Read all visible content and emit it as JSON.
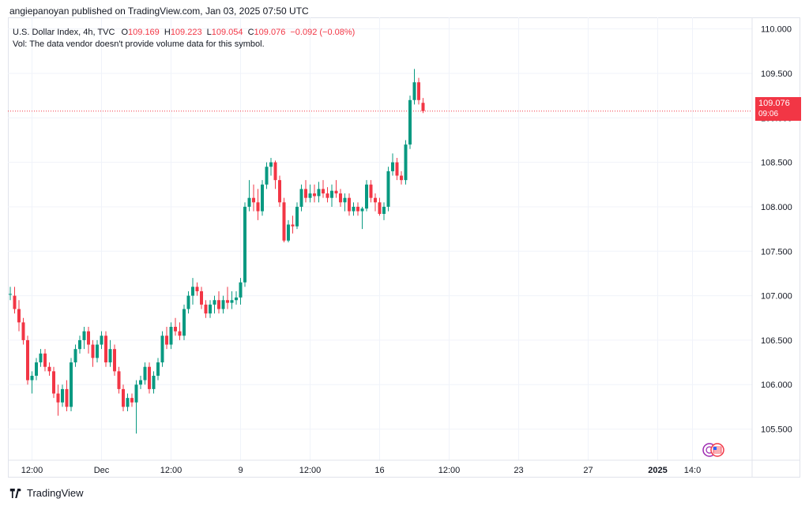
{
  "publisher_line": "angiepanoyan published on TradingView.com, Jan 03, 2025 07:50 UTC",
  "legend": {
    "symbol": "U.S. Dollar Index, 4h, TVC",
    "open_label": "O",
    "open": "109.169",
    "high_label": "H",
    "high": "109.223",
    "low_label": "L",
    "low": "109.054",
    "close_label": "C",
    "close": "109.076",
    "change": "−0.092 (−0.08%)",
    "vol_note": "Vol: The data vendor doesn't provide volume data for this symbol."
  },
  "last_price": {
    "price": "109.076",
    "countdown": "09:06"
  },
  "brand": "TradingView",
  "colors": {
    "up": "#089981",
    "down": "#f23645",
    "grid": "#f0f3fa",
    "axis_text": "#131722"
  },
  "chart_data": {
    "type": "candlestick",
    "title": "U.S. Dollar Index, 4h, TVC",
    "y_ticks": [
      "105.500",
      "106.000",
      "106.500",
      "107.000",
      "107.500",
      "108.000",
      "108.500",
      "109.000",
      "109.500",
      "110.000"
    ],
    "ylim": [
      105.15,
      110.13
    ],
    "x_ticks": [
      {
        "label": "12:00",
        "i": 5
      },
      {
        "label": "Dec",
        "i": 21
      },
      {
        "label": "12:00",
        "i": 37
      },
      {
        "label": "9",
        "i": 53
      },
      {
        "label": "12:00",
        "i": 69
      },
      {
        "label": "16",
        "i": 85
      },
      {
        "label": "12:00",
        "i": 101
      },
      {
        "label": "23",
        "i": 117
      },
      {
        "label": "27",
        "i": 133
      },
      {
        "label": "2025",
        "i": 149,
        "bold": true
      },
      {
        "label": "14:0",
        "i": 157
      }
    ],
    "last_price_line": 109.076,
    "candles": [
      [
        107.02,
        107.1,
        106.95,
        107.02
      ],
      [
        107.0,
        107.1,
        106.8,
        106.85
      ],
      [
        106.85,
        106.95,
        106.6,
        106.7
      ],
      [
        106.7,
        106.75,
        106.45,
        106.5
      ],
      [
        106.5,
        106.55,
        106.0,
        106.05
      ],
      [
        106.05,
        106.15,
        105.9,
        106.1
      ],
      [
        106.1,
        106.3,
        106.05,
        106.25
      ],
      [
        106.25,
        106.4,
        106.2,
        106.35
      ],
      [
        106.35,
        106.4,
        106.15,
        106.2
      ],
      [
        106.2,
        106.25,
        106.1,
        106.15
      ],
      [
        106.15,
        106.2,
        105.85,
        105.9
      ],
      [
        105.9,
        106.0,
        105.65,
        105.8
      ],
      [
        105.8,
        106.0,
        105.75,
        105.95
      ],
      [
        105.95,
        106.05,
        105.7,
        105.75
      ],
      [
        105.75,
        106.3,
        105.7,
        106.25
      ],
      [
        106.25,
        106.45,
        106.2,
        106.4
      ],
      [
        106.4,
        106.55,
        106.35,
        106.5
      ],
      [
        106.5,
        106.65,
        106.4,
        106.6
      ],
      [
        106.6,
        106.65,
        106.35,
        106.45
      ],
      [
        106.45,
        106.5,
        106.2,
        106.3
      ],
      [
        106.3,
        106.5,
        106.25,
        106.45
      ],
      [
        106.45,
        106.6,
        106.4,
        106.55
      ],
      [
        106.55,
        106.6,
        106.2,
        106.25
      ],
      [
        106.25,
        106.5,
        106.2,
        106.4
      ],
      [
        106.4,
        106.45,
        106.1,
        106.15
      ],
      [
        106.15,
        106.2,
        105.9,
        105.95
      ],
      [
        105.95,
        106.0,
        105.7,
        105.75
      ],
      [
        105.75,
        105.9,
        105.7,
        105.85
      ],
      [
        105.85,
        105.9,
        105.75,
        105.8
      ],
      [
        105.8,
        106.05,
        105.45,
        106.0
      ],
      [
        106.0,
        106.1,
        105.95,
        106.05
      ],
      [
        106.05,
        106.25,
        106.0,
        106.2
      ],
      [
        106.2,
        106.25,
        105.9,
        105.95
      ],
      [
        105.95,
        106.15,
        105.9,
        106.1
      ],
      [
        106.1,
        106.3,
        106.05,
        106.25
      ],
      [
        106.25,
        106.6,
        106.2,
        106.55
      ],
      [
        106.55,
        106.65,
        106.4,
        106.45
      ],
      [
        106.45,
        106.7,
        106.4,
        106.65
      ],
      [
        106.65,
        106.75,
        106.55,
        106.6
      ],
      [
        106.6,
        106.7,
        106.5,
        106.55
      ],
      [
        106.55,
        106.9,
        106.5,
        106.85
      ],
      [
        106.85,
        107.05,
        106.8,
        107.0
      ],
      [
        107.0,
        107.2,
        106.9,
        107.1
      ],
      [
        107.1,
        107.15,
        107.0,
        107.05
      ],
      [
        107.05,
        107.1,
        106.85,
        106.9
      ],
      [
        106.9,
        106.95,
        106.75,
        106.8
      ],
      [
        106.8,
        106.95,
        106.75,
        106.9
      ],
      [
        106.9,
        107.0,
        106.8,
        106.95
      ],
      [
        106.95,
        107.05,
        106.8,
        106.85
      ],
      [
        106.85,
        107.0,
        106.8,
        106.95
      ],
      [
        106.95,
        107.1,
        106.85,
        106.92
      ],
      [
        106.92,
        107.05,
        106.85,
        106.95
      ],
      [
        106.95,
        107.05,
        106.9,
        106.98
      ],
      [
        106.98,
        107.2,
        106.9,
        107.15
      ],
      [
        107.15,
        108.05,
        107.1,
        108.0
      ],
      [
        108.0,
        108.3,
        107.95,
        108.1
      ],
      [
        108.1,
        108.25,
        107.95,
        108.05
      ],
      [
        108.05,
        108.2,
        107.85,
        107.95
      ],
      [
        107.95,
        108.3,
        107.9,
        108.25
      ],
      [
        108.25,
        108.5,
        108.2,
        108.45
      ],
      [
        108.45,
        108.55,
        108.35,
        108.5
      ],
      [
        108.5,
        108.52,
        108.2,
        108.3
      ],
      [
        108.3,
        108.35,
        108.0,
        108.05
      ],
      [
        108.05,
        108.1,
        107.6,
        107.62
      ],
      [
        107.62,
        107.85,
        107.6,
        107.8
      ],
      [
        107.8,
        107.9,
        107.7,
        107.78
      ],
      [
        107.78,
        108.05,
        107.75,
        108.0
      ],
      [
        108.0,
        108.25,
        107.95,
        108.2
      ],
      [
        108.2,
        108.3,
        108.05,
        108.1
      ],
      [
        108.1,
        108.25,
        108.05,
        108.15
      ],
      [
        108.15,
        108.25,
        108.05,
        108.12
      ],
      [
        108.12,
        108.28,
        108.05,
        108.2
      ],
      [
        108.2,
        108.3,
        108.1,
        108.15
      ],
      [
        108.15,
        108.22,
        108.05,
        108.1
      ],
      [
        108.1,
        108.25,
        108.0,
        108.18
      ],
      [
        108.18,
        108.3,
        108.1,
        108.15
      ],
      [
        108.15,
        108.2,
        108.0,
        108.05
      ],
      [
        108.05,
        108.15,
        107.95,
        108.1
      ],
      [
        108.1,
        108.15,
        107.9,
        107.95
      ],
      [
        107.95,
        108.05,
        107.9,
        108.0
      ],
      [
        108.0,
        108.05,
        107.9,
        107.95
      ],
      [
        107.95,
        108.0,
        107.75,
        107.98
      ],
      [
        107.98,
        108.3,
        107.95,
        108.25
      ],
      [
        108.25,
        108.3,
        108.05,
        108.1
      ],
      [
        108.1,
        108.15,
        107.95,
        108.05
      ],
      [
        108.05,
        108.1,
        107.9,
        107.92
      ],
      [
        107.92,
        108.05,
        107.85,
        108.0
      ],
      [
        108.0,
        108.45,
        107.95,
        108.4
      ],
      [
        108.4,
        108.6,
        108.35,
        108.5
      ],
      [
        108.5,
        108.55,
        108.3,
        108.35
      ],
      [
        108.35,
        108.4,
        108.25,
        108.3
      ],
      [
        108.3,
        108.75,
        108.25,
        108.7
      ],
      [
        108.7,
        109.25,
        108.65,
        109.2
      ],
      [
        109.2,
        109.55,
        109.15,
        109.4
      ],
      [
        109.4,
        109.45,
        109.15,
        109.2
      ],
      [
        109.169,
        109.223,
        109.054,
        109.076
      ]
    ]
  },
  "plot": {
    "first_index": 0
  }
}
